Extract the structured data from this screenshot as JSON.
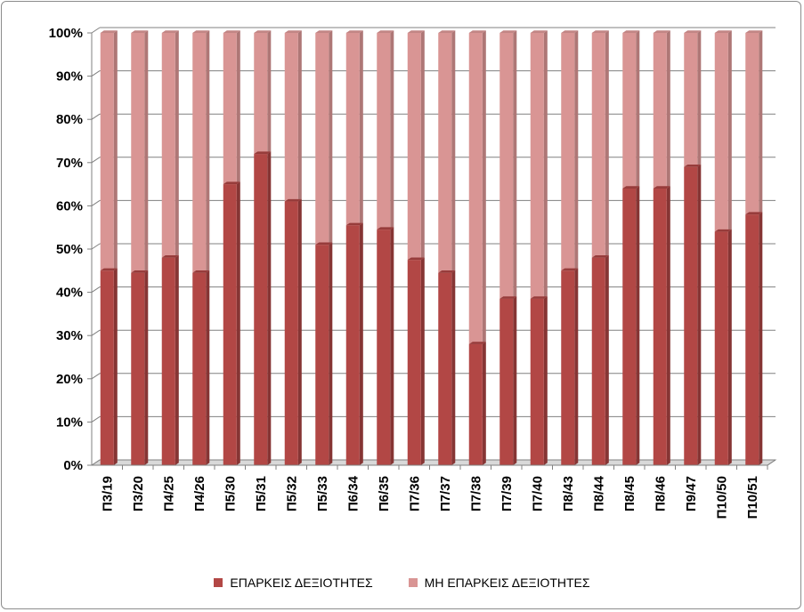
{
  "chart_data": {
    "type": "bar",
    "stacked": "percent",
    "categories": [
      "Π3/19",
      "Π3/20",
      "Π4/25",
      "Π4/26",
      "Π5/30",
      "Π5/31",
      "Π5/32",
      "Π5/33",
      "Π6/34",
      "Π6/35",
      "Π7/36",
      "Π7/37",
      "Π7/38",
      "Π7/39",
      "Π7/40",
      "Π8/43",
      "Π8/44",
      "Π8/45",
      "Π8/46",
      "Π9/47",
      "Π10/50",
      "Π10/51"
    ],
    "series": [
      {
        "name": "ΕΠΑΡΚΕΙΣ ΔΕΞΙΟΤΗΤΕΣ",
        "color": "#b24745",
        "values": [
          45,
          44.5,
          48,
          44.5,
          65,
          72,
          61,
          51,
          55.5,
          54.5,
          47.5,
          44.5,
          28,
          38.5,
          38.5,
          45,
          48,
          64,
          64,
          69,
          54,
          58
        ]
      },
      {
        "name": "ΜΗ ΕΠΑΡΚΕΙΣ ΔΕΞΙΟΤΗΤΕΣ",
        "color": "#d99594",
        "values": [
          55,
          55.5,
          52,
          55.5,
          35,
          28,
          39,
          49,
          44.5,
          45.5,
          52.5,
          55.5,
          72,
          61.5,
          61.5,
          55,
          52,
          36,
          36,
          31,
          46,
          42
        ]
      }
    ],
    "ylim": [
      0,
      100
    ],
    "yticks": [
      "0%",
      "10%",
      "20%",
      "30%",
      "40%",
      "50%",
      "60%",
      "70%",
      "80%",
      "90%",
      "100%"
    ],
    "grid": true,
    "legend_position": "bottom",
    "title": "",
    "xlabel": "",
    "ylabel": ""
  }
}
